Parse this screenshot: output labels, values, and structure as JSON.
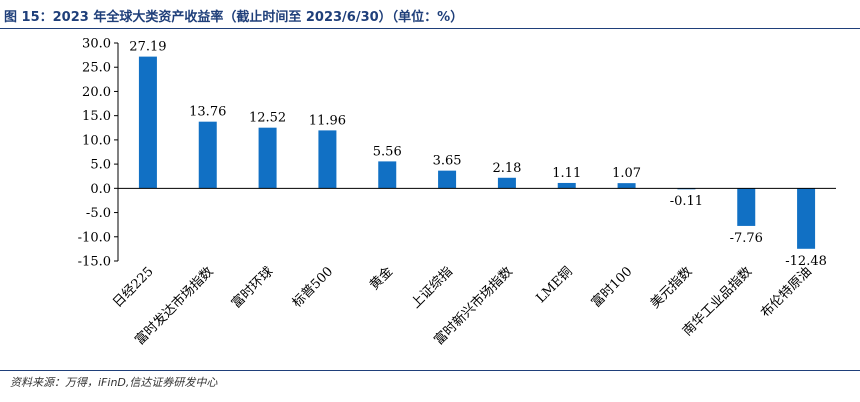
{
  "header": {
    "title": "图 15：2023 年全球大类资产收益率（截止时间至 2023/6/30）（单位：%）"
  },
  "footer": {
    "source": "资料来源：万得，iFinD,信达证券研发中心"
  },
  "chart_data": {
    "type": "bar",
    "categories": [
      "日经225",
      "富时发达市场指数",
      "富时环球",
      "标普500",
      "黄金",
      "上证综指",
      "富时新兴市场指数",
      "LME铜",
      "富时100",
      "美元指数",
      "南华工业品指数",
      "布伦特原油"
    ],
    "values": [
      27.19,
      13.76,
      12.52,
      11.96,
      5.56,
      3.65,
      2.18,
      1.11,
      1.07,
      -0.11,
      -7.76,
      -12.48
    ],
    "value_labels": [
      "27.19",
      "13.76",
      "12.52",
      "11.96",
      "5.56",
      "3.65",
      "2.18",
      "1.11",
      "1.07",
      "-0.11",
      "-7.76",
      "-12.48"
    ],
    "yticks": [
      "30.0",
      "25.0",
      "20.0",
      "15.0",
      "10.0",
      "5.0",
      "0.0",
      "-5.0",
      "-10.0",
      "-15.0"
    ],
    "ylim": [
      -15,
      30
    ],
    "bar_color": "#1170c4",
    "grid": false,
    "legend": "none"
  }
}
